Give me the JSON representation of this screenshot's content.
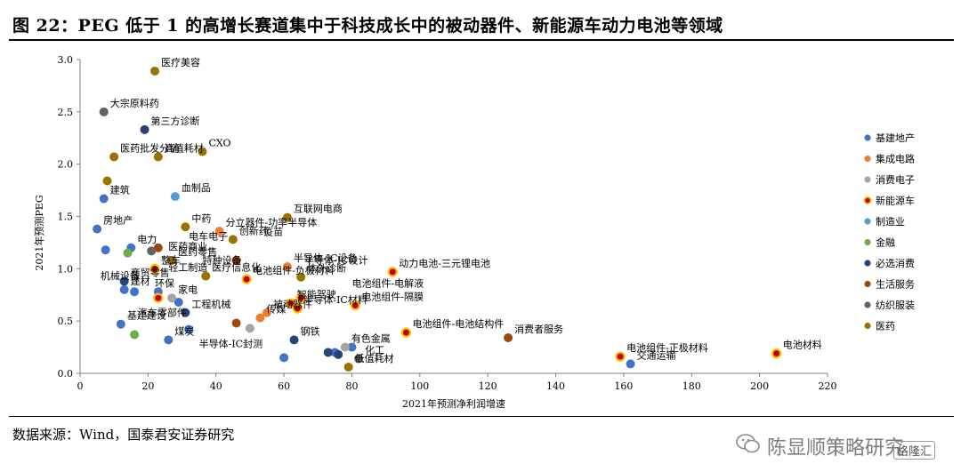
{
  "header": {
    "title": "图 22：PEG 低于 1 的高增长赛道集中于科技成长中的被动器件、新能源车动力电池等领域"
  },
  "footer": {
    "source": "数据来源：Wind，国泰君安证券研究",
    "watermark": "陈显顺策略研究",
    "logo": "格隆汇"
  },
  "chart_data": {
    "type": "scatter",
    "title": "",
    "xlabel": "2021年预测净利润增速",
    "ylabel": "2021年预测PEG",
    "xlim": [
      0,
      220
    ],
    "ylim": [
      0,
      3.0
    ],
    "xticks": [
      0,
      20,
      40,
      60,
      80,
      100,
      120,
      140,
      160,
      180,
      200,
      220
    ],
    "yticks": [
      0.0,
      0.5,
      1.0,
      1.5,
      2.0,
      2.5,
      3.0
    ],
    "legend_position": "right",
    "series": [
      {
        "name": "基建地产",
        "color": "#4472C4",
        "style": "dot",
        "points": [
          {
            "x": 5,
            "y": 1.38,
            "label": "房地产"
          },
          {
            "x": 7,
            "y": 1.67,
            "label": "建筑"
          },
          {
            "x": 7.5,
            "y": 1.18
          },
          {
            "x": 15,
            "y": 1.2,
            "label": "电力"
          },
          {
            "x": 13,
            "y": 0.8,
            "label": "建材"
          },
          {
            "x": 16,
            "y": 0.78
          },
          {
            "x": 12,
            "y": 0.47,
            "label": "基建建设"
          },
          {
            "x": 23,
            "y": 0.78
          },
          {
            "x": 29,
            "y": 0.68
          },
          {
            "x": 32,
            "y": 0.42
          },
          {
            "x": 26,
            "y": 0.32,
            "label": "煤炭"
          },
          {
            "x": 60,
            "y": 0.15
          },
          {
            "x": 75,
            "y": 0.2
          },
          {
            "x": 80,
            "y": 0.25
          },
          {
            "x": 162,
            "y": 0.09,
            "label": "交通运输"
          }
        ]
      },
      {
        "name": "集成电路",
        "color": "#ED7D31",
        "style": "dot",
        "points": [
          {
            "x": 41,
            "y": 1.36,
            "label": "分立器件-功率半导体"
          },
          {
            "x": 61,
            "y": 1.02,
            "label": "半导体-IC设备"
          },
          {
            "x": 55,
            "y": 0.58,
            "label": "被动器件"
          },
          {
            "x": 53,
            "y": 0.53,
            "label": "传媒"
          }
        ]
      },
      {
        "name": "消费电子",
        "color": "#A5A5A5",
        "style": "dot",
        "points": [
          {
            "x": 27,
            "y": 0.72,
            "label": "家电"
          },
          {
            "x": 50,
            "y": 0.43
          },
          {
            "x": 78,
            "y": 0.25,
            "label": "有色金属"
          }
        ]
      },
      {
        "name": "新能源车",
        "color": "#C00000",
        "style": "ring",
        "points": [
          {
            "x": 22,
            "y": 1.0,
            "label": "整车"
          },
          {
            "x": 23,
            "y": 0.72
          },
          {
            "x": 49,
            "y": 0.9,
            "label": "电池组件-负极材料"
          },
          {
            "x": 62,
            "y": 0.67,
            "label": "智能驾驶"
          },
          {
            "x": 65,
            "y": 0.72
          },
          {
            "x": 64,
            "y": 0.62,
            "label": "半导体-IC材料"
          },
          {
            "x": 81,
            "y": 0.65,
            "label": "电池组件-隔膜"
          },
          {
            "x": 92,
            "y": 0.97,
            "label": "动力电池-三元锂电池"
          },
          {
            "x": 96,
            "y": 0.39,
            "label": "电池组件-电池结构件"
          },
          {
            "x": 159,
            "y": 0.16,
            "label": "电池组件-正极材料"
          },
          {
            "x": 205,
            "y": 0.19,
            "label": "电池材料"
          }
        ]
      },
      {
        "name": "制造业",
        "color": "#5B9BD5",
        "style": "dot",
        "points": [
          {
            "x": 28,
            "y": 1.69,
            "label": "血制品"
          }
        ]
      },
      {
        "name": "金融",
        "color": "#70AD47",
        "style": "dot",
        "points": [
          {
            "x": 14,
            "y": 1.15
          },
          {
            "x": 16,
            "y": 0.37
          }
        ]
      },
      {
        "name": "必选消费",
        "color": "#264478",
        "style": "dot",
        "points": [
          {
            "x": 19,
            "y": 2.33,
            "label": "第三方诊断"
          },
          {
            "x": 13,
            "y": 0.88,
            "label": "商贸零售"
          },
          {
            "x": 31,
            "y": 0.58,
            "label": "工程机械"
          },
          {
            "x": 63,
            "y": 0.32,
            "label": "钢铁"
          },
          {
            "x": 73,
            "y": 0.2
          },
          {
            "x": 76,
            "y": 0.18
          }
        ]
      },
      {
        "name": "生活服务",
        "color": "#9E480E",
        "style": "dot",
        "points": [
          {
            "x": 23,
            "y": 1.2
          },
          {
            "x": 46,
            "y": 1.08
          },
          {
            "x": 46,
            "y": 0.48
          },
          {
            "x": 126,
            "y": 0.34,
            "label": "消费者服务"
          }
        ]
      },
      {
        "name": "纺织服装",
        "color": "#636363",
        "style": "dot",
        "points": [
          {
            "x": 7,
            "y": 2.5,
            "label": "大宗原料药"
          },
          {
            "x": 21,
            "y": 1.17
          },
          {
            "x": 82,
            "y": 0.14,
            "label": "化工"
          }
        ]
      },
      {
        "name": "医药",
        "color": "#997300",
        "style": "dot",
        "points": [
          {
            "x": 22,
            "y": 2.89,
            "label": "医疗美容"
          },
          {
            "x": 36,
            "y": 2.12,
            "label": "CXO"
          },
          {
            "x": 23,
            "y": 2.07,
            "label": "高值耗材"
          },
          {
            "x": 10,
            "y": 2.07,
            "label": "医药批发分销"
          },
          {
            "x": 8,
            "y": 1.84
          },
          {
            "x": 31,
            "y": 1.4,
            "label": "中药"
          },
          {
            "x": 45,
            "y": 1.28,
            "label": "创新药"
          },
          {
            "x": 61,
            "y": 1.49,
            "label": "互联网电商"
          },
          {
            "x": 65,
            "y": 0.92,
            "label": "体外诊断"
          },
          {
            "x": 27,
            "y": 1.08,
            "label": "医药零售"
          },
          {
            "x": 37,
            "y": 0.93,
            "label": "医疗信息化"
          },
          {
            "x": 79,
            "y": 0.06,
            "label": "低值耗材"
          }
        ]
      }
    ],
    "annotations": [
      {
        "text": "机械设备",
        "x": 6,
        "y": 0.9
      },
      {
        "text": "汽车零部件",
        "x": 17,
        "y": 0.55
      },
      {
        "text": "环保",
        "x": 22,
        "y": 0.83
      },
      {
        "text": "医药商业",
        "x": 26,
        "y": 1.18
      },
      {
        "text": "电车电子",
        "x": 32,
        "y": 1.28
      },
      {
        "text": "疫苗",
        "x": 54,
        "y": 1.32
      },
      {
        "text": "特种设备",
        "x": 36,
        "y": 1.05
      },
      {
        "text": "轻工制造",
        "x": 26,
        "y": 0.98
      },
      {
        "text": "电池组件-电解液",
        "x": 80,
        "y": 0.83
      },
      {
        "text": "半导体-IC设计",
        "x": 66,
        "y": 1.05
      },
      {
        "text": "半导体-IC封测",
        "x": 35,
        "y": 0.25
      }
    ]
  }
}
